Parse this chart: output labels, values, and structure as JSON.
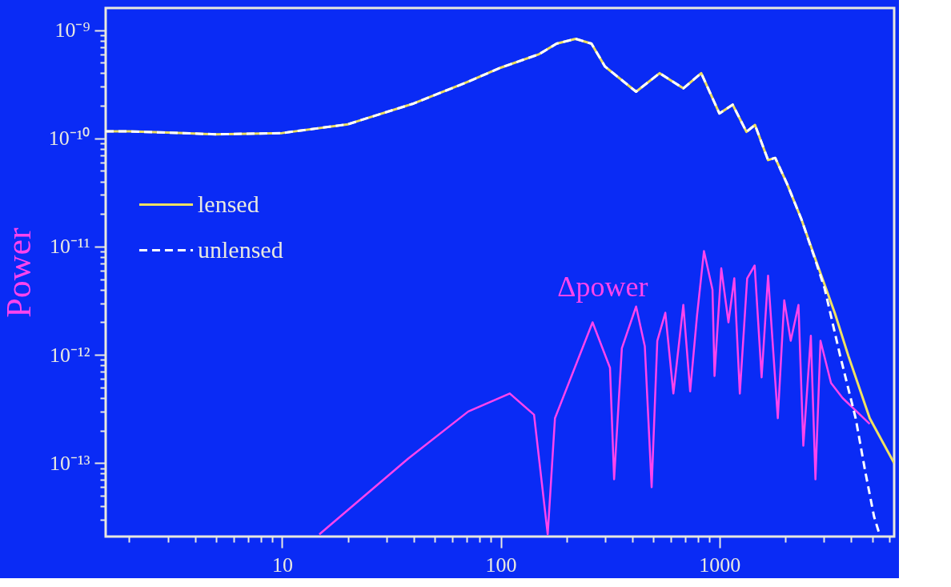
{
  "chart_data": {
    "type": "line",
    "ylabel": "Power",
    "log": "xy",
    "grid": false,
    "legend": "top left",
    "xlim": [
      1.56,
      6300
    ],
    "ylim": [
      2.1e-14,
      1.6e-09
    ],
    "xticks": [
      {
        "value": 2,
        "label": null
      },
      {
        "value": 3,
        "label": null
      },
      {
        "value": 4,
        "label": null
      },
      {
        "value": 5,
        "label": null
      },
      {
        "value": 6,
        "label": null
      },
      {
        "value": 7,
        "label": null
      },
      {
        "value": 8,
        "label": null
      },
      {
        "value": 9,
        "label": null
      },
      10,
      {
        "value": 20,
        "label": null
      },
      {
        "value": 30,
        "label": null
      },
      {
        "value": 40,
        "label": null
      },
      {
        "value": 50,
        "label": null
      },
      {
        "value": 60,
        "label": null
      },
      {
        "value": 70,
        "label": null
      },
      {
        "value": 80,
        "label": null
      },
      {
        "value": 90,
        "label": null
      },
      100,
      {
        "value": 200,
        "label": null
      },
      {
        "value": 300,
        "label": null
      },
      {
        "value": 400,
        "label": null
      },
      {
        "value": 500,
        "label": null
      },
      {
        "value": 600,
        "label": null
      },
      {
        "value": 700,
        "label": null
      },
      {
        "value": 800,
        "label": null
      },
      {
        "value": 900,
        "label": null
      },
      1000,
      {
        "value": 2000,
        "label": null
      },
      {
        "value": 3000,
        "label": null
      },
      {
        "value": 4000,
        "label": null
      },
      {
        "value": 5000,
        "label": null
      },
      {
        "value": 6000,
        "label": null
      }
    ],
    "yticks": [
      {
        "value": 3e-14,
        "label": null
      },
      {
        "value": 4e-14,
        "label": null
      },
      {
        "value": 5e-14,
        "label": null
      },
      {
        "value": 6e-14,
        "label": null
      },
      {
        "value": 7e-14,
        "label": null
      },
      {
        "value": 8e-14,
        "label": null
      },
      {
        "value": 9e-14,
        "label": null
      },
      {
        "value": 1e-13,
        "label": "10⁻¹³"
      },
      {
        "value": 2e-13,
        "label": null
      },
      {
        "value": 3e-13,
        "label": null
      },
      {
        "value": 4e-13,
        "label": null
      },
      {
        "value": 5e-13,
        "label": null
      },
      {
        "value": 6e-13,
        "label": null
      },
      {
        "value": 7e-13,
        "label": null
      },
      {
        "value": 8e-13,
        "label": null
      },
      {
        "value": 9e-13,
        "label": null
      },
      {
        "value": 1e-12,
        "label": "10⁻¹²"
      },
      {
        "value": 2e-12,
        "label": null
      },
      {
        "value": 3e-12,
        "label": null
      },
      {
        "value": 4e-12,
        "label": null
      },
      {
        "value": 5e-12,
        "label": null
      },
      {
        "value": 6e-12,
        "label": null
      },
      {
        "value": 7e-12,
        "label": null
      },
      {
        "value": 8e-12,
        "label": null
      },
      {
        "value": 9e-12,
        "label": null
      },
      {
        "value": 1e-11,
        "label": "10⁻¹¹"
      },
      {
        "value": 2e-11,
        "label": null
      },
      {
        "value": 3e-11,
        "label": null
      },
      {
        "value": 4e-11,
        "label": null
      },
      {
        "value": 5e-11,
        "label": null
      },
      {
        "value": 6e-11,
        "label": null
      },
      {
        "value": 7e-11,
        "label": null
      },
      {
        "value": 8e-11,
        "label": null
      },
      {
        "value": 9e-11,
        "label": null
      },
      {
        "value": 1e-10,
        "label": "10⁻¹⁰"
      },
      {
        "value": 2e-10,
        "label": null
      },
      {
        "value": 3e-10,
        "label": null
      },
      {
        "value": 4e-10,
        "label": null
      },
      {
        "value": 5e-10,
        "label": null
      },
      {
        "value": 6e-10,
        "label": null
      },
      {
        "value": 7e-10,
        "label": null
      },
      {
        "value": 8e-10,
        "label": null
      },
      {
        "value": 9e-10,
        "label": null
      },
      {
        "value": 1e-09,
        "label": "10⁻⁹"
      }
    ],
    "series": [
      {
        "name": "lensed",
        "color": "#f0e060",
        "line_style": "solid",
        "x": [
          1.56,
          2,
          3,
          5,
          10,
          20,
          40,
          70,
          100,
          150,
          180,
          220,
          260,
          300,
          416,
          533,
          684,
          826,
          1000,
          1150,
          1330,
          1455,
          1670,
          1800,
          2040,
          2370,
          2780,
          3380,
          3890,
          4870,
          6300
        ],
        "values": [
          1.16e-10,
          1.16e-10,
          1.13e-10,
          1.09e-10,
          1.12e-10,
          1.35e-10,
          2.1e-10,
          3.3e-10,
          4.5e-10,
          6e-10,
          7.5e-10,
          8.3e-10,
          7.5e-10,
          4.6e-10,
          2.7e-10,
          4e-10,
          2.9e-10,
          4e-10,
          1.7e-10,
          2.05e-10,
          1.15e-10,
          1.33e-10,
          6.3e-11,
          6.6e-11,
          3.8e-11,
          1.8e-11,
          7.2e-12,
          2.4e-12,
          9.8e-13,
          2.6e-13,
          1e-13
        ]
      },
      {
        "name": "unlensed",
        "color": "#ffffff",
        "line_style": "dashed",
        "x": [
          1.56,
          2,
          3,
          5,
          10,
          20,
          40,
          70,
          100,
          150,
          180,
          220,
          260,
          300,
          416,
          533,
          684,
          826,
          1000,
          1150,
          1330,
          1455,
          1670,
          1800,
          2040,
          2370,
          2780,
          3030,
          3560,
          4200,
          4650,
          5100,
          5400
        ],
        "values": [
          1.16e-10,
          1.16e-10,
          1.13e-10,
          1.09e-10,
          1.12e-10,
          1.35e-10,
          2.1e-10,
          3.3e-10,
          4.5e-10,
          6e-10,
          7.5e-10,
          8.3e-10,
          7.5e-10,
          4.6e-10,
          2.7e-10,
          4e-10,
          2.9e-10,
          4e-10,
          1.7e-10,
          2.05e-10,
          1.15e-10,
          1.33e-10,
          6.3e-11,
          6.6e-11,
          3.8e-11,
          1.8e-11,
          7e-12,
          4.1e-12,
          1e-12,
          2.6e-13,
          8.3e-14,
          3.2e-14,
          2.2e-14
        ]
      },
      {
        "name": "Δpower",
        "color": "#ff44ee",
        "line_style": "solid",
        "x": [
          14.8,
          37.7,
          71,
          110,
          142,
          164,
          177,
          263,
          316,
          330,
          358,
          416,
          456,
          490,
          520,
          566,
          616,
          684,
          735,
          790,
          850,
          930,
          950,
          1020,
          1100,
          1170,
          1240,
          1340,
          1450,
          1560,
          1670,
          1850,
          1980,
          2120,
          2300,
          2420,
          2620,
          2750,
          2900,
          3240,
          3660,
          4870
        ],
        "values": [
          2.2e-14,
          1.1e-13,
          3e-13,
          4.4e-13,
          2.8e-13,
          2.2e-14,
          2.6e-13,
          2e-12,
          7.6e-13,
          7.1e-14,
          1.15e-12,
          2.8e-12,
          1.2e-12,
          6e-14,
          1.35e-12,
          2.45e-12,
          4.4e-13,
          2.9e-12,
          4.6e-13,
          2.3e-12,
          9.1e-12,
          4e-12,
          6.4e-13,
          6.3e-12,
          2e-12,
          5.1e-12,
          4.4e-13,
          5.1e-12,
          6.7e-12,
          6.2e-13,
          5.4e-12,
          2.6e-13,
          3.2e-12,
          1.35e-12,
          2.9e-12,
          1.45e-13,
          1.5e-12,
          7.1e-14,
          1.35e-12,
          5.5e-13,
          4e-13,
          2.3e-13
        ]
      }
    ]
  }
}
